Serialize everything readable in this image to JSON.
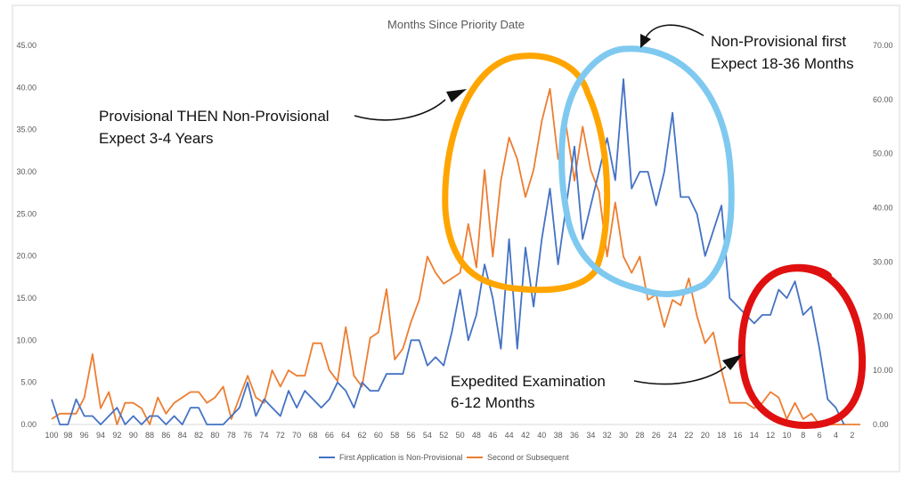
{
  "chart_data": {
    "type": "line",
    "title": "Months Since Priority Date",
    "x": [
      100,
      99,
      98,
      97,
      96,
      95,
      94,
      93,
      92,
      91,
      90,
      89,
      88,
      87,
      86,
      85,
      84,
      83,
      82,
      81,
      80,
      79,
      78,
      77,
      76,
      75,
      74,
      73,
      72,
      71,
      70,
      69,
      68,
      67,
      66,
      65,
      64,
      63,
      62,
      61,
      60,
      59,
      58,
      57,
      56,
      55,
      54,
      53,
      52,
      51,
      50,
      49,
      48,
      47,
      46,
      45,
      44,
      43,
      42,
      41,
      40,
      39,
      38,
      37,
      36,
      35,
      34,
      33,
      32,
      31,
      30,
      29,
      28,
      27,
      26,
      25,
      24,
      23,
      22,
      21,
      20,
      19,
      18,
      17,
      16,
      15,
      14,
      13,
      12,
      11,
      10,
      9,
      8,
      7,
      6,
      5,
      4,
      3,
      2,
      1
    ],
    "x_tick_labels": [
      "100",
      "98",
      "96",
      "94",
      "92",
      "90",
      "88",
      "86",
      "84",
      "82",
      "80",
      "78",
      "76",
      "74",
      "72",
      "70",
      "68",
      "66",
      "64",
      "62",
      "60",
      "58",
      "56",
      "54",
      "52",
      "50",
      "48",
      "46",
      "44",
      "42",
      "40",
      "38",
      "36",
      "34",
      "32",
      "30",
      "28",
      "26",
      "24",
      "22",
      "20",
      "18",
      "16",
      "14",
      "12",
      "10",
      "8",
      "6",
      "4",
      "2"
    ],
    "xlim": [
      100,
      1
    ],
    "y_left": {
      "ylim": [
        0,
        45
      ],
      "ticks": [
        "0.00",
        "5.00",
        "10.00",
        "15.00",
        "20.00",
        "25.00",
        "30.00",
        "35.00",
        "40.00",
        "45.00"
      ]
    },
    "y_right": {
      "ylim": [
        0,
        70
      ],
      "ticks": [
        "0.00",
        "10.00",
        "20.00",
        "30.00",
        "40.00",
        "50.00",
        "60.00",
        "70.00"
      ]
    },
    "grid": false,
    "legend_position": "bottom",
    "series": [
      {
        "name": "First Application is Non-Provisional",
        "axis": "left",
        "color": "#4472C4",
        "values": [
          3,
          0,
          0,
          3,
          1,
          1,
          0,
          1,
          2,
          0,
          1,
          0,
          1,
          1,
          0,
          1,
          0,
          2,
          2,
          0,
          0,
          0,
          1,
          2,
          5,
          1,
          3,
          2,
          1,
          4,
          2,
          4,
          3,
          2,
          3,
          5,
          4,
          2,
          5,
          4,
          4,
          6,
          6,
          6,
          10,
          10,
          7,
          8,
          7,
          11,
          16,
          10,
          13,
          19,
          15,
          9,
          22,
          9,
          21,
          14,
          22,
          28,
          19,
          26,
          33,
          22,
          26,
          30,
          34,
          29,
          41,
          28,
          30,
          30,
          26,
          30,
          37,
          27,
          27,
          25,
          20,
          23,
          26,
          15,
          14,
          13,
          12,
          13,
          13,
          16,
          15,
          17,
          13,
          14,
          9,
          3,
          2,
          0,
          null,
          null
        ]
      },
      {
        "name": "Second or Subsequent",
        "axis": "right",
        "color": "#ED7D31",
        "values": [
          1,
          2,
          2,
          2,
          5,
          13,
          3,
          6,
          0,
          4,
          4,
          3,
          0,
          5,
          2,
          4,
          5,
          6,
          6,
          4,
          5,
          7,
          1,
          5,
          9,
          5,
          4,
          10,
          7,
          10,
          9,
          9,
          15,
          15,
          10,
          8,
          18,
          9,
          7,
          16,
          17,
          25,
          12,
          14,
          19,
          23,
          31,
          28,
          26,
          27,
          28,
          37,
          29,
          47,
          31,
          45,
          53,
          49,
          42,
          47,
          56,
          62,
          49,
          55,
          45,
          55,
          47,
          43,
          31,
          41,
          31,
          28,
          31,
          23,
          24,
          18,
          23,
          22,
          27,
          20,
          15,
          17,
          10,
          4,
          4,
          4,
          3,
          4,
          6,
          5,
          1,
          4,
          1,
          2,
          0,
          0,
          0,
          0,
          0,
          0
        ]
      }
    ],
    "annotations": [
      {
        "text_lines": [
          "Provisional THEN Non-Provisional",
          "Expect 3-4 Years"
        ],
        "circle_color": "#FFA500"
      },
      {
        "text_lines": [
          "Non-Provisional first",
          "Expect 18-36 Months"
        ],
        "circle_color": "#7FC9F0"
      },
      {
        "text_lines": [
          "Expedited Examination",
          "6-12 Months"
        ],
        "circle_color": "#E01010"
      }
    ]
  }
}
